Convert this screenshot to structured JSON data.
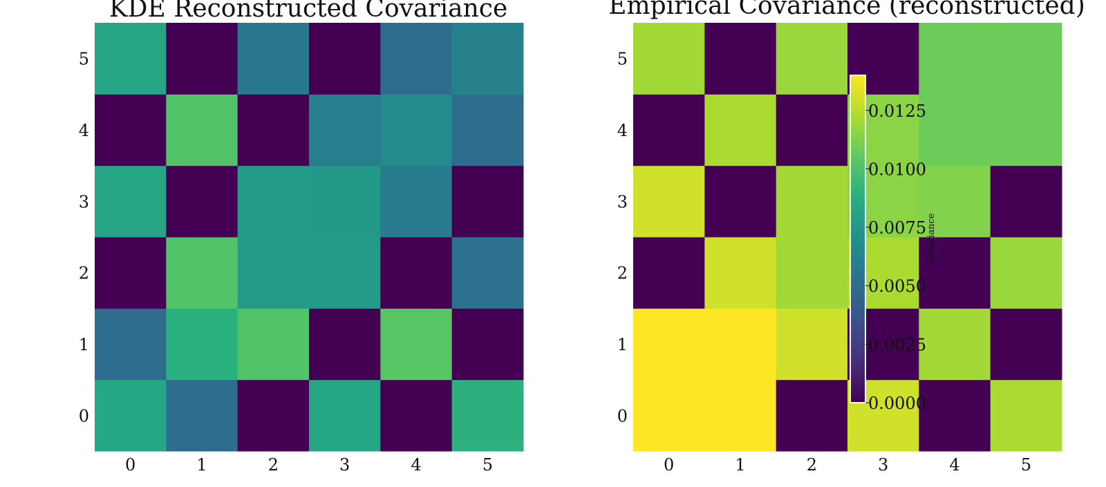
{
  "chart_data": [
    {
      "type": "heatmap",
      "title": "KDE Reconstructed Covariance",
      "x_ticks": [
        "0",
        "1",
        "2",
        "3",
        "4",
        "5"
      ],
      "y_ticks": [
        "0",
        "1",
        "2",
        "3",
        "4",
        "5"
      ],
      "colormap": "viridis",
      "vmin": 0.0,
      "vmax": 0.014,
      "rows_bottom_to_top": [
        [
          0.0083,
          0.005,
          0.0,
          0.0083,
          0.0,
          0.0089
        ],
        [
          0.005,
          0.0088,
          0.0101,
          0.0,
          0.0103,
          0.0
        ],
        [
          0.0,
          0.0101,
          0.0076,
          0.0076,
          0.0,
          0.0052
        ],
        [
          0.0082,
          0.0,
          0.0076,
          0.0075,
          0.0058,
          0.0
        ],
        [
          0.0,
          0.0101,
          0.0,
          0.006,
          0.0066,
          0.005
        ],
        [
          0.0082,
          0.0,
          0.0056,
          0.0,
          0.005,
          0.0061
        ]
      ]
    },
    {
      "type": "heatmap",
      "title": "Empirical Covariance (reconstructed)",
      "x_ticks": [
        "0",
        "1",
        "2",
        "3",
        "4",
        "5"
      ],
      "y_ticks": [
        "0",
        "1",
        "2",
        "3",
        "4",
        "5"
      ],
      "colormap": "viridis",
      "vmin": 0.0,
      "vmax": 0.014,
      "colorbar": {
        "label": "Covariance",
        "ticks": [
          "0.0000",
          "0.0025",
          "0.0050",
          "0.0075",
          "0.0100",
          "0.0125"
        ],
        "tick_values": [
          0.0,
          0.0025,
          0.005,
          0.0075,
          0.01,
          0.0125
        ]
      },
      "rows_bottom_to_top": [
        [
          0.014,
          0.014,
          0.0,
          0.013,
          0.0,
          0.0122
        ],
        [
          0.014,
          0.014,
          0.013,
          0.0,
          0.012,
          0.0
        ],
        [
          0.0,
          0.013,
          0.012,
          0.0122,
          0.0,
          0.0118
        ],
        [
          0.013,
          0.0,
          0.012,
          0.0115,
          0.0113,
          0.0
        ],
        [
          0.0,
          0.0122,
          0.0,
          0.0115,
          0.0108,
          0.0108
        ],
        [
          0.012,
          0.0,
          0.0118,
          0.0,
          0.0108,
          0.0108
        ]
      ]
    }
  ]
}
